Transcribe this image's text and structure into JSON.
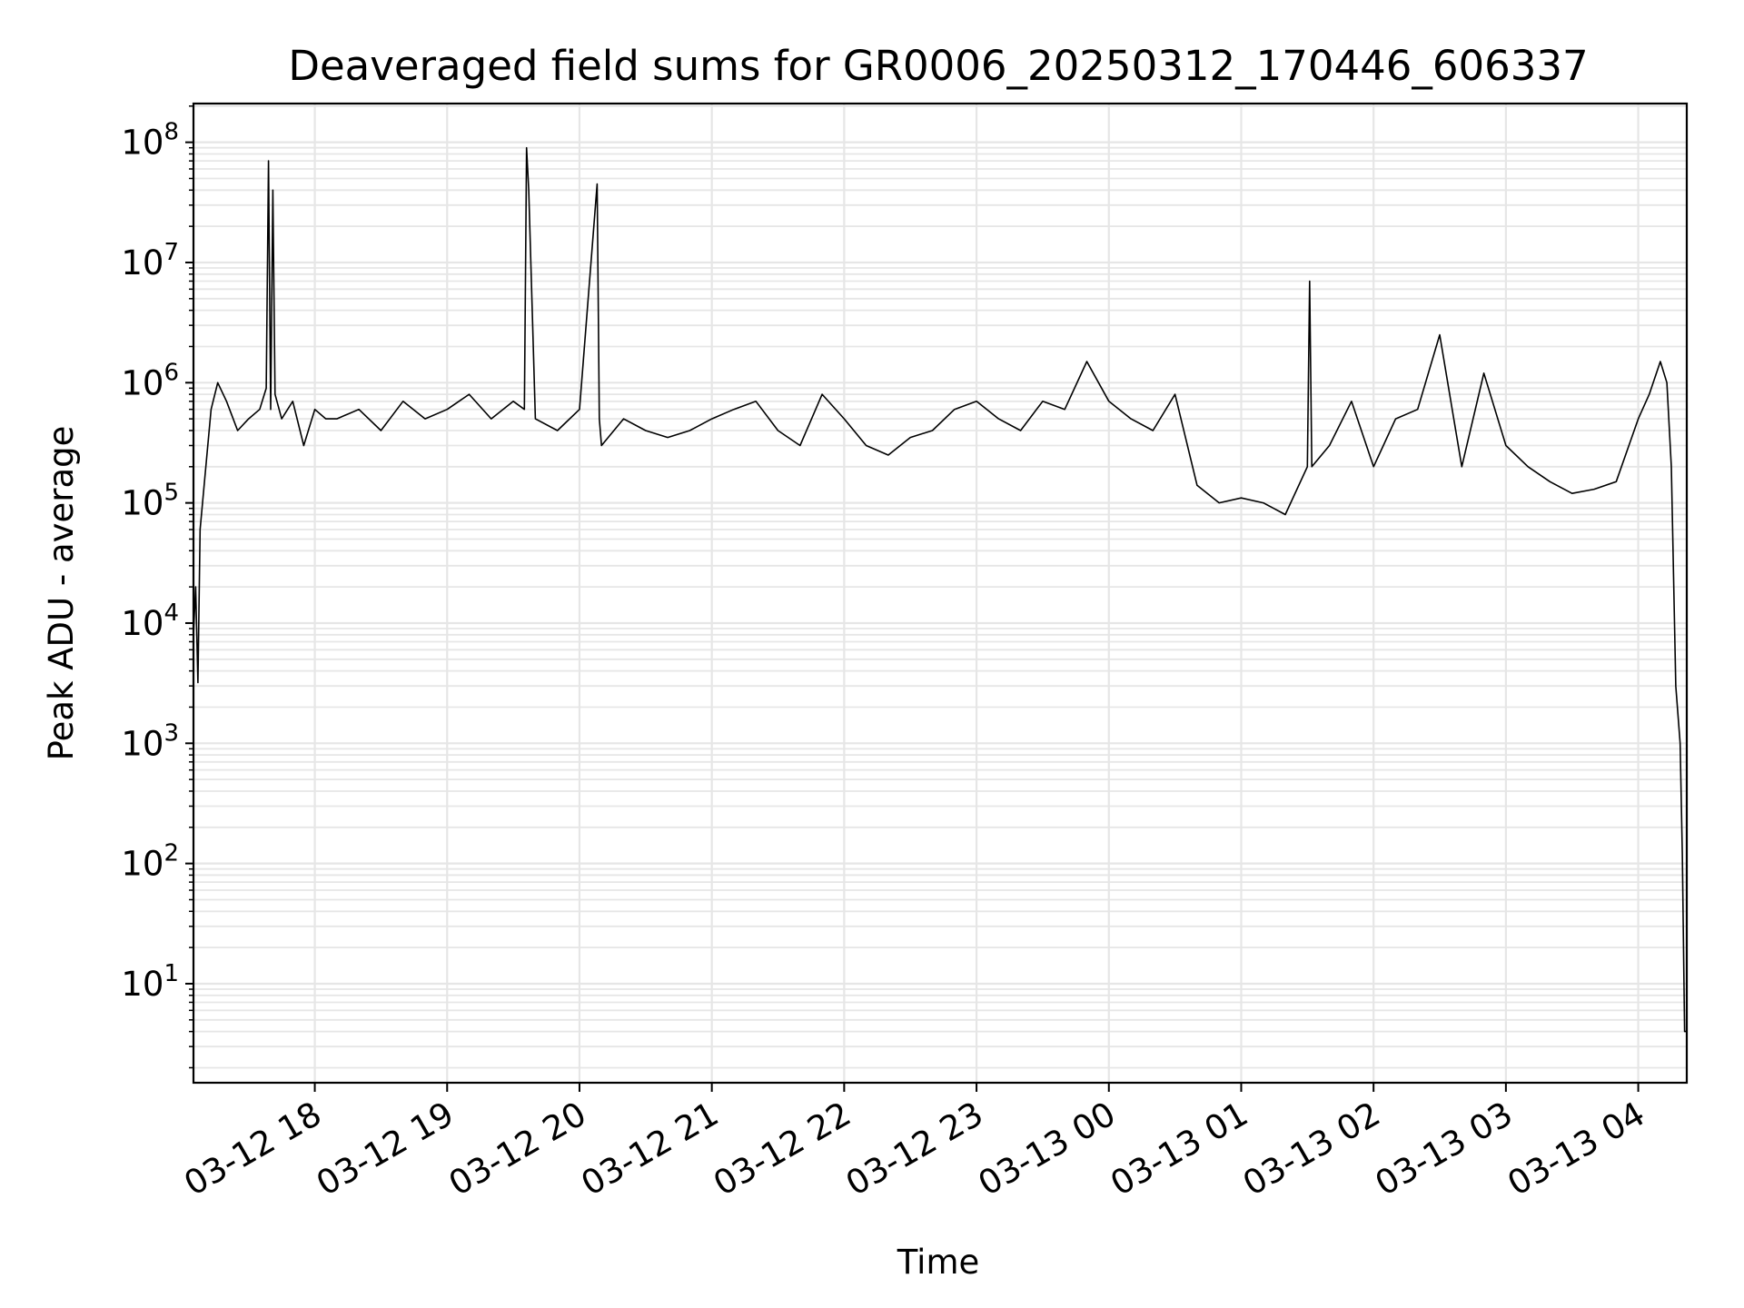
{
  "chart_data": {
    "type": "line",
    "title": "Deaveraged field sums for GR0006_20250312_170446_606337",
    "xlabel": "Time",
    "ylabel": "Peak ADU - average",
    "yscale": "log",
    "ylim": [
      1.5,
      210000000.0
    ],
    "xlim": [
      "2025-03-12 17:05",
      "2025-03-13 04:22"
    ],
    "grid": true,
    "colors": {
      "line": "#000000",
      "grid": "#e6e6e6"
    },
    "x_tick_labels": [
      "03-12 18",
      "03-12 19",
      "03-12 20",
      "03-12 21",
      "03-12 22",
      "03-12 23",
      "03-13 00",
      "03-13 01",
      "03-13 02",
      "03-13 03",
      "03-13 04"
    ],
    "y_tick_labels": [
      {
        "base": "10",
        "exp": "1"
      },
      {
        "base": "10",
        "exp": "2"
      },
      {
        "base": "10",
        "exp": "3"
      },
      {
        "base": "10",
        "exp": "4"
      },
      {
        "base": "10",
        "exp": "5"
      },
      {
        "base": "10",
        "exp": "6"
      },
      {
        "base": "10",
        "exp": "7"
      },
      {
        "base": "10",
        "exp": "8"
      }
    ],
    "series": [
      {
        "color": "#000000",
        "x": [
          "2025-03-12 17:05",
          "2025-03-12 17:06",
          "2025-03-12 17:07",
          "2025-03-12 17:08",
          "2025-03-12 17:10",
          "2025-03-12 17:13",
          "2025-03-12 17:16",
          "2025-03-12 17:20",
          "2025-03-12 17:25",
          "2025-03-12 17:30",
          "2025-03-12 17:35",
          "2025-03-12 17:38",
          "2025-03-12 17:39",
          "2025-03-12 17:40",
          "2025-03-12 17:41",
          "2025-03-12 17:42",
          "2025-03-12 17:45",
          "2025-03-12 17:50",
          "2025-03-12 17:55",
          "2025-03-12 18:00",
          "2025-03-12 18:05",
          "2025-03-12 18:10",
          "2025-03-12 18:20",
          "2025-03-12 18:30",
          "2025-03-12 18:40",
          "2025-03-12 18:50",
          "2025-03-12 19:00",
          "2025-03-12 19:10",
          "2025-03-12 19:20",
          "2025-03-12 19:30",
          "2025-03-12 19:35",
          "2025-03-12 19:36",
          "2025-03-12 19:37",
          "2025-03-12 19:40",
          "2025-03-12 19:50",
          "2025-03-12 20:00",
          "2025-03-12 20:08",
          "2025-03-12 20:09",
          "2025-03-12 20:10",
          "2025-03-12 20:20",
          "2025-03-12 20:30",
          "2025-03-12 20:40",
          "2025-03-12 20:50",
          "2025-03-12 21:00",
          "2025-03-12 21:10",
          "2025-03-12 21:20",
          "2025-03-12 21:30",
          "2025-03-12 21:40",
          "2025-03-12 21:50",
          "2025-03-12 22:00",
          "2025-03-12 22:10",
          "2025-03-12 22:20",
          "2025-03-12 22:30",
          "2025-03-12 22:40",
          "2025-03-12 22:50",
          "2025-03-12 23:00",
          "2025-03-12 23:10",
          "2025-03-12 23:20",
          "2025-03-12 23:30",
          "2025-03-12 23:40",
          "2025-03-12 23:50",
          "2025-03-13 00:00",
          "2025-03-13 00:10",
          "2025-03-13 00:20",
          "2025-03-13 00:30",
          "2025-03-13 00:40",
          "2025-03-13 00:50",
          "2025-03-13 01:00",
          "2025-03-13 01:10",
          "2025-03-13 01:20",
          "2025-03-13 01:30",
          "2025-03-13 01:31",
          "2025-03-13 01:32",
          "2025-03-13 01:40",
          "2025-03-13 01:50",
          "2025-03-13 02:00",
          "2025-03-13 02:10",
          "2025-03-13 02:20",
          "2025-03-13 02:30",
          "2025-03-13 02:40",
          "2025-03-13 02:50",
          "2025-03-13 03:00",
          "2025-03-13 03:10",
          "2025-03-13 03:20",
          "2025-03-13 03:30",
          "2025-03-13 03:40",
          "2025-03-13 03:50",
          "2025-03-13 04:00",
          "2025-03-13 04:05",
          "2025-03-13 04:10",
          "2025-03-13 04:13",
          "2025-03-13 04:15",
          "2025-03-13 04:17",
          "2025-03-13 04:19",
          "2025-03-13 04:20",
          "2025-03-13 04:21",
          "2025-03-13 04:22"
        ],
        "y": [
          8000,
          20000,
          3200,
          60000,
          150000,
          600000,
          1000000,
          700000,
          400000,
          500000,
          600000,
          900000,
          70000000,
          600000,
          40000000,
          800000,
          500000,
          700000,
          300000,
          600000,
          500000,
          500000,
          600000,
          400000,
          700000,
          500000,
          600000,
          800000,
          500000,
          700000,
          600000,
          90000000,
          40000000,
          500000,
          400000,
          600000,
          45000000,
          500000,
          300000,
          500000,
          400000,
          350000,
          400000,
          500000,
          600000,
          700000,
          400000,
          300000,
          800000,
          500000,
          300000,
          250000,
          350000,
          400000,
          600000,
          700000,
          500000,
          400000,
          700000,
          600000,
          1500000,
          700000,
          500000,
          400000,
          800000,
          140000,
          100000,
          110000,
          100000,
          80000,
          200000,
          7000000,
          200000,
          300000,
          700000,
          200000,
          500000,
          600000,
          2500000,
          200000,
          1200000,
          300000,
          200000,
          150000,
          120000,
          130000,
          150000,
          500000,
          800000,
          1500000,
          1000000,
          200000,
          3000,
          1000,
          120,
          4,
          4
        ]
      }
    ]
  }
}
